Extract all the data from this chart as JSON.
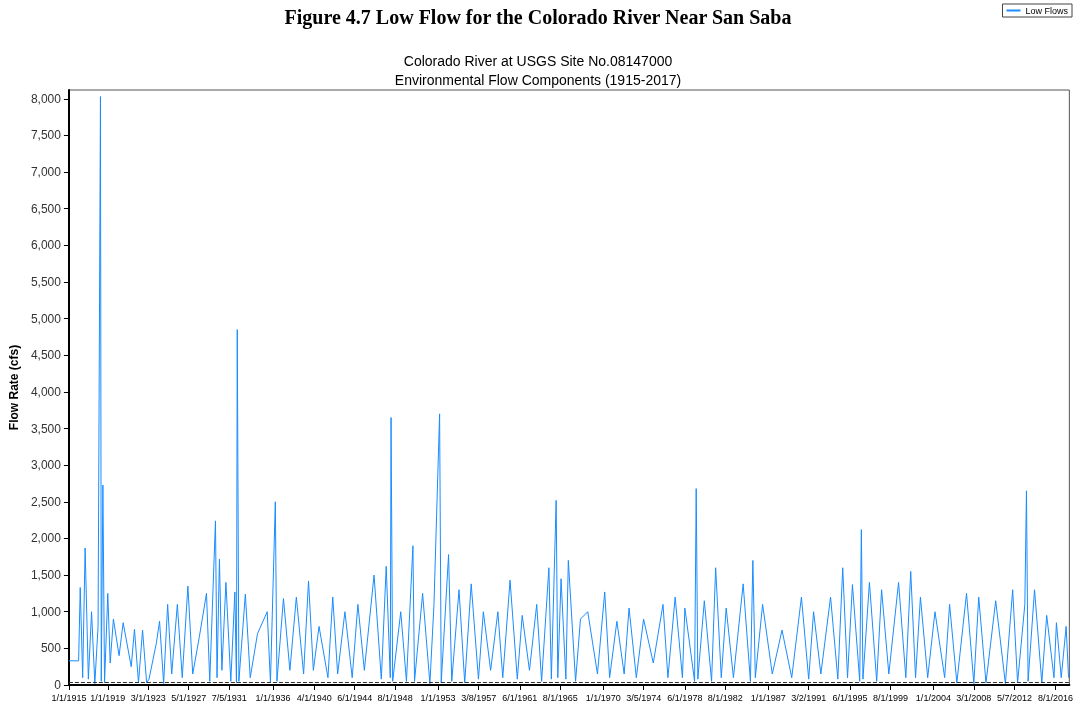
{
  "chart_data": {
    "type": "line",
    "title": "Figure 4.7 Low Flow for the Colorado River Near San Saba",
    "subtitle": "Colorado River at USGS Site No.08147000\nEnvironmental Flow Components (1915-2017)",
    "ylabel": "Flow Rate (cfs)",
    "xlim": [
      "1915-01-01",
      "2017-12-31"
    ],
    "xticks": [
      {
        "value": "1915-01-01",
        "label": "1/1/1915"
      },
      {
        "value": "1919-01-01",
        "label": "1/1/1919"
      },
      {
        "value": "1923-03-01",
        "label": "3/1/1923"
      },
      {
        "value": "1927-05-01",
        "label": "5/1/1927"
      },
      {
        "value": "1931-07-05",
        "label": "7/5/1931"
      },
      {
        "value": "1936-01-01",
        "label": "1/1/1936"
      },
      {
        "value": "1940-04-01",
        "label": "4/1/1940"
      },
      {
        "value": "1944-06-01",
        "label": "6/1/1944"
      },
      {
        "value": "1948-08-01",
        "label": "8/1/1948"
      },
      {
        "value": "1953-01-01",
        "label": "1/1/1953"
      },
      {
        "value": "1957-03-08",
        "label": "3/8/1957"
      },
      {
        "value": "1961-06-01",
        "label": "6/1/1961"
      },
      {
        "value": "1965-08-01",
        "label": "8/1/1965"
      },
      {
        "value": "1970-01-01",
        "label": "1/1/1970"
      },
      {
        "value": "1974-03-05",
        "label": "3/5/1974"
      },
      {
        "value": "1978-06-01",
        "label": "6/1/1978"
      },
      {
        "value": "1982-08-01",
        "label": "8/1/1982"
      },
      {
        "value": "1987-01-01",
        "label": "1/1/1987"
      },
      {
        "value": "1991-03-02",
        "label": "3/2/1991"
      },
      {
        "value": "1995-06-01",
        "label": "6/1/1995"
      },
      {
        "value": "1999-08-01",
        "label": "8/1/1999"
      },
      {
        "value": "2004-01-01",
        "label": "1/1/2004"
      },
      {
        "value": "2008-03-01",
        "label": "3/1/2008"
      },
      {
        "value": "2012-05-07",
        "label": "5/7/2012"
      },
      {
        "value": "2016-08-01",
        "label": "8/1/2016"
      }
    ],
    "ylim": [
      0,
      8120
    ],
    "yticks": [
      {
        "value": 0,
        "label": "0"
      },
      {
        "value": 500,
        "label": "500"
      },
      {
        "value": 1000,
        "label": "1,000"
      },
      {
        "value": 1500,
        "label": "1,500"
      },
      {
        "value": 2000,
        "label": "2,000"
      },
      {
        "value": 2500,
        "label": "2,500"
      },
      {
        "value": 3000,
        "label": "3,000"
      },
      {
        "value": 3500,
        "label": "3,500"
      },
      {
        "value": 4000,
        "label": "4,000"
      },
      {
        "value": 4500,
        "label": "4,500"
      },
      {
        "value": 5000,
        "label": "5,000"
      },
      {
        "value": 5500,
        "label": "5,500"
      },
      {
        "value": 6000,
        "label": "6,000"
      },
      {
        "value": 6500,
        "label": "6,500"
      },
      {
        "value": 7000,
        "label": "7,000"
      },
      {
        "value": 7500,
        "label": "7,500"
      },
      {
        "value": 8000,
        "label": "8,000"
      }
    ],
    "x": [
      "1915-01-01",
      "1916-01",
      "1916-03",
      "1916-06",
      "1916-09",
      "1917-01",
      "1917-05",
      "1917-09",
      "1918-01",
      "1918-04",
      "1918-05",
      "1918-07",
      "1918-09",
      "1919-01",
      "1919-04",
      "1919-08",
      "1920-03",
      "1920-08",
      "1921-06",
      "1921-10",
      "1922-03",
      "1922-08",
      "1923-01",
      "1923-04",
      "1924-01",
      "1924-05",
      "1924-10",
      "1925-03",
      "1925-08",
      "1926-03",
      "1926-09",
      "1927-04",
      "1927-10",
      "1928-06",
      "1929-03",
      "1929-07",
      "1930-02",
      "1930-04",
      "1930-07",
      "1930-10",
      "1931-03",
      "1931-09",
      "1932-02",
      "1932-04",
      "1932-05",
      "1932-07",
      "1933-03",
      "1933-09",
      "1934-06",
      "1935-06",
      "1935-10",
      "1936-04",
      "1936-06",
      "1937-02",
      "1937-10",
      "1938-06",
      "1939-03",
      "1939-09",
      "1940-03",
      "1940-10",
      "1941-09",
      "1942-03",
      "1942-09",
      "1943-06",
      "1944-03",
      "1944-10",
      "1945-06",
      "1946-06",
      "1947-03",
      "1947-09",
      "1948-02",
      "1948-03",
      "1948-05",
      "1949-03",
      "1949-10",
      "1950-06",
      "1950-08",
      "1951-06",
      "1952-03",
      "1952-08",
      "1953-03",
      "1953-05",
      "1954-02",
      "1954-06",
      "1955-03",
      "1955-10",
      "1956-06",
      "1957-03",
      "1957-09",
      "1958-06",
      "1959-03",
      "1959-09",
      "1960-06",
      "1961-03",
      "1961-09",
      "1962-06",
      "1963-03",
      "1963-09",
      "1964-06",
      "1964-09",
      "1965-03",
      "1965-05",
      "1965-09",
      "1966-03",
      "1966-06",
      "1967-03",
      "1967-09",
      "1968-06",
      "1969-06",
      "1970-03",
      "1970-09",
      "1971-06",
      "1972-03",
      "1972-09",
      "1973-06",
      "1974-03",
      "1975-03",
      "1976-03",
      "1976-09",
      "1977-06",
      "1978-03",
      "1978-06",
      "1979-06",
      "1979-08",
      "1979-10",
      "1980-06",
      "1981-03",
      "1981-08",
      "1982-03",
      "1982-09",
      "1983-06",
      "1984-06",
      "1985-03",
      "1985-06",
      "1985-09",
      "1986-06",
      "1987-06",
      "1988-06",
      "1989-06",
      "1990-06",
      "1991-03",
      "1991-09",
      "1992-06",
      "1993-06",
      "1994-03",
      "1994-09",
      "1995-03",
      "1995-09",
      "1996-06",
      "1996-08",
      "1996-10",
      "1997-06",
      "1998-03",
      "1998-09",
      "1999-06",
      "2000-06",
      "2001-03",
      "2001-09",
      "2002-03",
      "2002-09",
      "2003-06",
      "2004-03",
      "2005-03",
      "2005-09",
      "2006-06",
      "2007-06",
      "2008-03",
      "2008-09",
      "2009-06",
      "2010-06",
      "2011-06",
      "2012-03",
      "2012-09",
      "2013-06",
      "2013-08",
      "2013-10",
      "2014-06",
      "2015-03",
      "2015-09",
      "2016-06",
      "2016-09",
      "2017-03",
      "2017-09",
      "2017-12"
    ],
    "series": [
      {
        "name": "Low Flows",
        "color": "#1a8cff",
        "values": [
          330,
          330,
          1330,
          100,
          1870,
          80,
          1000,
          20,
          800,
          8030,
          50,
          2730,
          30,
          1250,
          300,
          900,
          400,
          850,
          250,
          760,
          30,
          750,
          30,
          80,
          570,
          870,
          20,
          1100,
          150,
          1100,
          100,
          1350,
          150,
          650,
          1250,
          50,
          2240,
          100,
          1720,
          200,
          1400,
          50,
          1270,
          30,
          4850,
          50,
          1240,
          100,
          700,
          1000,
          30,
          2500,
          50,
          1180,
          200,
          1200,
          150,
          1420,
          200,
          800,
          100,
          1200,
          150,
          1000,
          100,
          1100,
          200,
          1500,
          80,
          1620,
          100,
          3650,
          50,
          1000,
          50,
          1900,
          50,
          1250,
          20,
          1100,
          3700,
          30,
          1780,
          50,
          1300,
          30,
          1380,
          80,
          1000,
          200,
          1000,
          100,
          1430,
          80,
          950,
          200,
          1100,
          50,
          1600,
          80,
          2520,
          100,
          1450,
          80,
          1700,
          50,
          900,
          1000,
          150,
          1270,
          100,
          870,
          150,
          1050,
          100,
          900,
          300,
          1100,
          100,
          1200,
          100,
          1050,
          50,
          2680,
          80,
          1150,
          50,
          1600,
          100,
          1050,
          100,
          1380,
          50,
          1700,
          100,
          1100,
          150,
          750,
          100,
          1200,
          80,
          1000,
          150,
          1200,
          80,
          1600,
          100,
          1370,
          50,
          2120,
          80,
          1400,
          50,
          1300,
          150,
          1400,
          100,
          1550,
          100,
          1200,
          100,
          1000,
          100,
          1100,
          30,
          1250,
          20,
          1200,
          30,
          1150,
          20,
          1300,
          30,
          1100,
          2650,
          50,
          1300,
          30,
          950,
          100,
          850,
          100,
          800,
          100
        ]
      }
    ],
    "ref_lines": [
      {
        "axis": "y",
        "value": 40,
        "color": "#333333",
        "line_style": "dashed"
      }
    ],
    "legend": "top right",
    "grid": false
  }
}
